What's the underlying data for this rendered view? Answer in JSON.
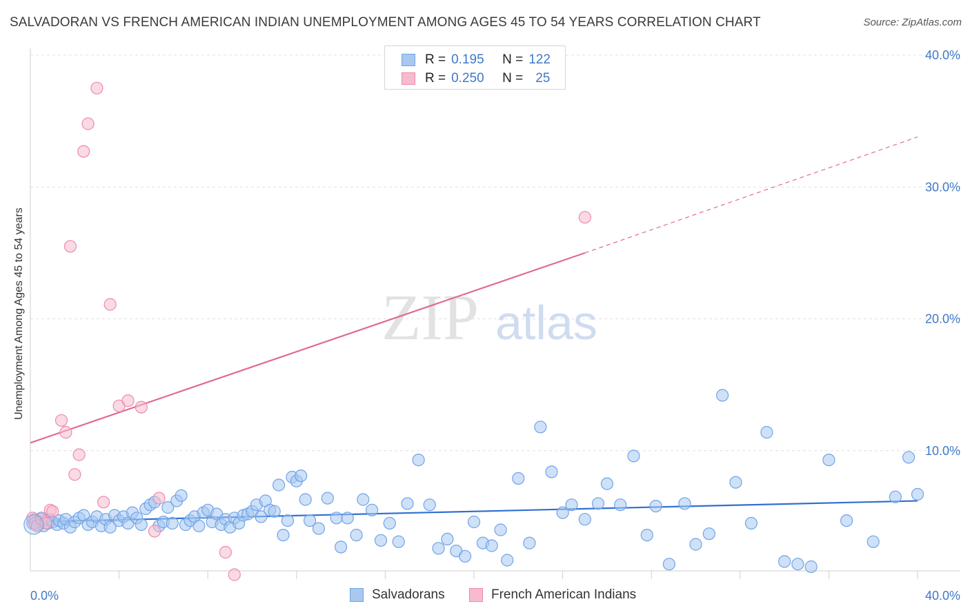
{
  "header": {
    "title": "SALVADORAN VS FRENCH AMERICAN INDIAN UNEMPLOYMENT AMONG AGES 45 TO 54 YEARS CORRELATION CHART",
    "source": "Source: ZipAtlas.com"
  },
  "watermark": {
    "zip": "ZIP",
    "atlas": "atlas"
  },
  "legend": {
    "rows": [
      {
        "r_label": "R =",
        "r_value": "0.195",
        "n_label": "N =",
        "n_value": "122",
        "color": "#a8c8f0"
      },
      {
        "r_label": "R =",
        "r_value": "0.250",
        "n_label": "N =",
        "n_value": "25",
        "color": "#f6bccd"
      }
    ]
  },
  "chart_data": {
    "type": "scatter",
    "title": "SALVADORAN VS FRENCH AMERICAN INDIAN UNEMPLOYMENT AMONG AGES 45 TO 54 YEARS CORRELATION CHART",
    "xlabel": "",
    "ylabel": "Unemployment Among Ages 45 to 54 years",
    "xlim": [
      0,
      40
    ],
    "ylim": [
      0,
      40
    ],
    "x_tick_labels": {
      "left": "0.0%",
      "right": "40.0%"
    },
    "y_ticks": [
      {
        "value": 10,
        "label": "10.0%"
      },
      {
        "value": 20,
        "label": "20.0%"
      },
      {
        "value": 30,
        "label": "30.0%"
      },
      {
        "value": 40,
        "label": "40.0%"
      }
    ],
    "series": [
      {
        "name": "Salvadorans",
        "color": "#6fa3e8",
        "fill": "#a8c8f0",
        "line_color": "#2f6fd0",
        "trend": {
          "x0": 0,
          "y0": 4.6,
          "x1": 40,
          "y1": 6.2
        },
        "points": [
          [
            0.1,
            4.5
          ],
          [
            0.2,
            4.8
          ],
          [
            0.3,
            4.4
          ],
          [
            0.4,
            4.6
          ],
          [
            0.5,
            4.9
          ],
          [
            0.6,
            4.3
          ],
          [
            0.7,
            4.7
          ],
          [
            0.8,
            4.5
          ],
          [
            0.9,
            4.8
          ],
          [
            1.0,
            4.6
          ],
          [
            1.2,
            4.4
          ],
          [
            1.3,
            4.7
          ],
          [
            1.5,
            4.5
          ],
          [
            1.6,
            4.8
          ],
          [
            1.8,
            4.2
          ],
          [
            2.0,
            4.6
          ],
          [
            2.2,
            4.9
          ],
          [
            2.4,
            5.1
          ],
          [
            2.6,
            4.4
          ],
          [
            2.8,
            4.6
          ],
          [
            3.0,
            5.0
          ],
          [
            3.2,
            4.3
          ],
          [
            3.4,
            4.8
          ],
          [
            3.6,
            4.2
          ],
          [
            3.8,
            5.1
          ],
          [
            4.0,
            4.7
          ],
          [
            4.2,
            5.0
          ],
          [
            4.4,
            4.5
          ],
          [
            4.6,
            5.3
          ],
          [
            4.8,
            4.9
          ],
          [
            5.0,
            4.4
          ],
          [
            5.2,
            5.6
          ],
          [
            5.4,
            5.9
          ],
          [
            5.6,
            6.1
          ],
          [
            5.8,
            4.3
          ],
          [
            6.0,
            4.6
          ],
          [
            6.2,
            5.7
          ],
          [
            6.4,
            4.5
          ],
          [
            6.6,
            6.2
          ],
          [
            6.8,
            6.6
          ],
          [
            7.0,
            4.4
          ],
          [
            7.2,
            4.7
          ],
          [
            7.4,
            5.0
          ],
          [
            7.6,
            4.3
          ],
          [
            7.8,
            5.3
          ],
          [
            8.0,
            5.5
          ],
          [
            8.2,
            4.6
          ],
          [
            8.4,
            5.2
          ],
          [
            8.6,
            4.4
          ],
          [
            8.8,
            4.8
          ],
          [
            9.0,
            4.2
          ],
          [
            9.2,
            4.9
          ],
          [
            9.4,
            4.5
          ],
          [
            9.6,
            5.1
          ],
          [
            9.8,
            5.2
          ],
          [
            10.0,
            5.4
          ],
          [
            10.2,
            5.9
          ],
          [
            10.4,
            5.0
          ],
          [
            10.6,
            6.2
          ],
          [
            10.8,
            5.5
          ],
          [
            11.0,
            5.4
          ],
          [
            11.2,
            7.4
          ],
          [
            11.4,
            3.6
          ],
          [
            11.6,
            4.7
          ],
          [
            11.8,
            8.0
          ],
          [
            12.0,
            7.7
          ],
          [
            12.2,
            8.1
          ],
          [
            12.4,
            6.3
          ],
          [
            12.6,
            4.7
          ],
          [
            13.0,
            4.1
          ],
          [
            13.4,
            6.4
          ],
          [
            13.8,
            4.9
          ],
          [
            14.0,
            2.7
          ],
          [
            14.3,
            4.9
          ],
          [
            14.7,
            3.6
          ],
          [
            15.0,
            6.3
          ],
          [
            15.4,
            5.5
          ],
          [
            15.8,
            3.2
          ],
          [
            16.2,
            4.5
          ],
          [
            16.6,
            3.1
          ],
          [
            17.0,
            6.0
          ],
          [
            17.5,
            9.3
          ],
          [
            18.0,
            5.9
          ],
          [
            18.4,
            2.6
          ],
          [
            18.8,
            3.3
          ],
          [
            19.2,
            2.4
          ],
          [
            19.6,
            2.0
          ],
          [
            20.0,
            4.6
          ],
          [
            20.4,
            3.0
          ],
          [
            20.8,
            2.8
          ],
          [
            21.2,
            4.0
          ],
          [
            21.5,
            1.7
          ],
          [
            22.0,
            7.9
          ],
          [
            22.5,
            3.0
          ],
          [
            23.0,
            11.8
          ],
          [
            23.5,
            8.4
          ],
          [
            24.0,
            5.3
          ],
          [
            24.4,
            5.9
          ],
          [
            25.0,
            4.8
          ],
          [
            25.6,
            6.0
          ],
          [
            26.0,
            7.5
          ],
          [
            26.6,
            5.9
          ],
          [
            27.2,
            9.6
          ],
          [
            27.8,
            3.6
          ],
          [
            28.2,
            5.8
          ],
          [
            28.8,
            1.4
          ],
          [
            29.5,
            6.0
          ],
          [
            30.0,
            2.9
          ],
          [
            30.6,
            3.7
          ],
          [
            31.2,
            14.2
          ],
          [
            31.8,
            7.6
          ],
          [
            32.5,
            4.5
          ],
          [
            33.2,
            11.4
          ],
          [
            34.0,
            1.6
          ],
          [
            34.6,
            1.4
          ],
          [
            35.2,
            1.2
          ],
          [
            36.0,
            9.3
          ],
          [
            36.8,
            4.7
          ],
          [
            38.0,
            3.1
          ],
          [
            39.0,
            6.5
          ],
          [
            39.6,
            9.5
          ],
          [
            40.0,
            6.7
          ]
        ]
      },
      {
        "name": "French American Indians",
        "color": "#ee8aaa",
        "fill": "#f6bccd",
        "line_color": "#e06a92",
        "trend": {
          "x0": 0,
          "y0": 10.6,
          "x1": 25,
          "y1": 25.0
        },
        "trend_dashed": {
          "x0": 25,
          "y0": 25.0,
          "x1": 40,
          "y1": 33.8
        },
        "points": [
          [
            0.1,
            4.9
          ],
          [
            0.2,
            4.5
          ],
          [
            0.3,
            4.3
          ],
          [
            0.5,
            4.8
          ],
          [
            0.7,
            4.5
          ],
          [
            0.9,
            5.5
          ],
          [
            1.0,
            5.4
          ],
          [
            1.4,
            12.3
          ],
          [
            1.6,
            11.4
          ],
          [
            1.8,
            25.5
          ],
          [
            2.0,
            8.2
          ],
          [
            2.2,
            9.7
          ],
          [
            2.4,
            32.7
          ],
          [
            2.6,
            34.8
          ],
          [
            3.0,
            37.5
          ],
          [
            3.3,
            6.1
          ],
          [
            3.6,
            21.1
          ],
          [
            4.0,
            13.4
          ],
          [
            4.4,
            13.8
          ],
          [
            5.0,
            13.3
          ],
          [
            5.6,
            3.9
          ],
          [
            5.8,
            6.4
          ],
          [
            8.8,
            2.3
          ],
          [
            9.2,
            0.6
          ],
          [
            25.0,
            27.7
          ]
        ]
      }
    ]
  },
  "bottom_legend": {
    "items": [
      {
        "label": "Salvadorans"
      },
      {
        "label": "French American Indians"
      }
    ]
  }
}
